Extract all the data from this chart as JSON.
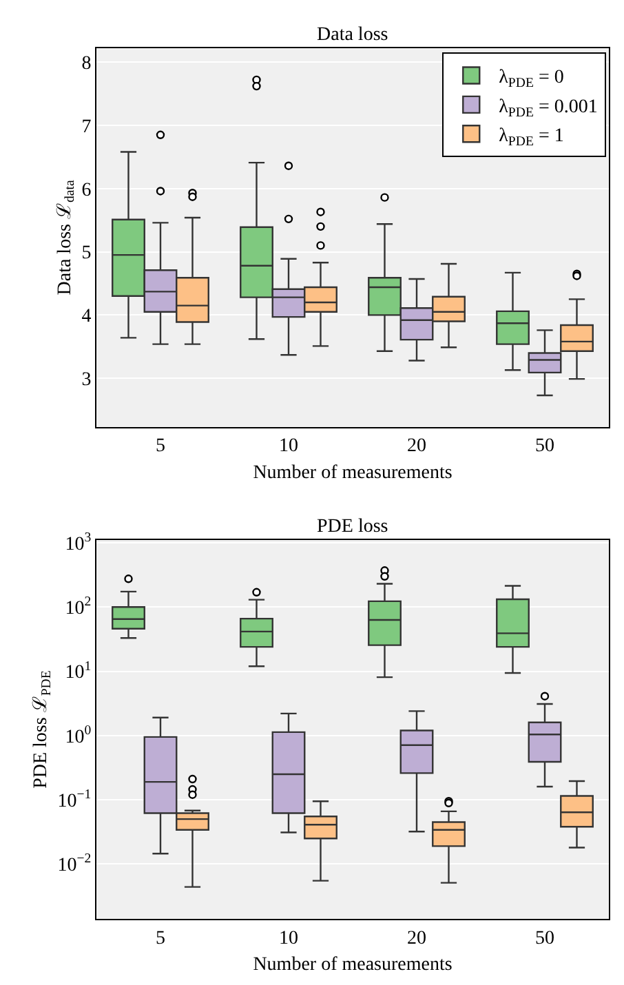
{
  "chart_data": [
    {
      "type": "box",
      "title": "Data loss",
      "xlabel": "Number of measurements",
      "ylabel": "Data loss ℒ$_{data}$",
      "categories": [
        "5",
        "10",
        "20",
        "50"
      ],
      "ylim": [
        2.23,
        8.22
      ],
      "yticks": [
        3,
        4,
        5,
        6,
        7,
        8
      ],
      "grid": "y",
      "legend": "top right",
      "marker": "circle",
      "series": [
        {
          "name": "λ$_{PDE}$ = 0",
          "color": "#7fc97f",
          "boxes": [
            {
              "low": 3.64,
              "q1": 4.3,
              "median": 4.95,
              "q3": 5.51,
              "high": 6.58
            },
            {
              "low": 3.62,
              "q1": 4.28,
              "median": 4.78,
              "q3": 5.39,
              "high": 6.41,
              "outliers": [
                7.72,
                7.62
              ]
            },
            {
              "low": 3.43,
              "q1": 4.0,
              "median": 4.44,
              "q3": 4.59,
              "high": 5.44,
              "outliers": [
                5.86
              ]
            },
            {
              "low": 3.13,
              "q1": 3.54,
              "median": 3.87,
              "q3": 4.06,
              "high": 4.67
            }
          ]
        },
        {
          "name": "λ$_{PDE}$ = 0.001",
          "color": "#beaed4",
          "boxes": [
            {
              "low": 3.54,
              "q1": 4.05,
              "median": 4.37,
              "q3": 4.71,
              "high": 5.46,
              "outliers": [
                6.85,
                5.96
              ]
            },
            {
              "low": 3.37,
              "q1": 3.97,
              "median": 4.28,
              "q3": 4.41,
              "high": 4.89,
              "outliers": [
                6.36,
                5.52
              ]
            },
            {
              "low": 3.28,
              "q1": 3.61,
              "median": 3.92,
              "q3": 4.11,
              "high": 4.57
            },
            {
              "low": 2.73,
              "q1": 3.09,
              "median": 3.29,
              "q3": 3.4,
              "high": 3.76
            }
          ]
        },
        {
          "name": "λ$_{PDE}$ = 1",
          "color": "#fdc086",
          "boxes": [
            {
              "low": 3.54,
              "q1": 3.89,
              "median": 4.15,
              "q3": 4.59,
              "high": 5.54,
              "outliers": [
                5.93,
                5.87
              ]
            },
            {
              "low": 3.51,
              "q1": 4.05,
              "median": 4.2,
              "q3": 4.44,
              "high": 4.83,
              "outliers": [
                5.63,
                5.4,
                5.1
              ]
            },
            {
              "low": 3.49,
              "q1": 3.9,
              "median": 4.05,
              "q3": 4.29,
              "high": 4.81
            },
            {
              "low": 2.99,
              "q1": 3.43,
              "median": 3.58,
              "q3": 3.84,
              "high": 4.25,
              "outliers": [
                4.65,
                4.62
              ]
            }
          ]
        }
      ]
    },
    {
      "type": "box",
      "title": "PDE loss",
      "xlabel": "Number of measurements",
      "ylabel": "PDE loss ℒ$_{PDE}$",
      "categories": [
        "5",
        "10",
        "20",
        "50"
      ],
      "log": "y",
      "ylim": [
        0.0014,
        1100
      ],
      "yticks": [
        {
          "value": 0.01,
          "label": "10$^{−2}$"
        },
        {
          "value": 0.1,
          "label": "10$^{−1}$"
        },
        {
          "value": 1,
          "label": "10$^{0}$"
        },
        {
          "value": 10,
          "label": "10$^{1}$"
        },
        {
          "value": 100,
          "label": "10$^{2}$"
        },
        {
          "value": 1000,
          "label": "10$^{3}$"
        }
      ],
      "grid": "y",
      "marker": "circle",
      "series": [
        {
          "color": "#7fc97f",
          "boxes": [
            {
              "low": 33,
              "q1": 46,
              "median": 65,
              "q3": 100,
              "high": 174,
              "outliers": [
                275
              ]
            },
            {
              "low": 12,
              "q1": 24,
              "median": 41.5,
              "q3": 66,
              "high": 130,
              "outliers": [
                170
              ]
            },
            {
              "low": 8.1,
              "q1": 25.5,
              "median": 63,
              "q3": 123,
              "high": 230,
              "outliers": [
                370,
                300
              ]
            },
            {
              "low": 9.4,
              "q1": 24,
              "median": 39,
              "q3": 132,
              "high": 214
            }
          ]
        },
        {
          "color": "#beaed4",
          "boxes": [
            {
              "low": 0.0145,
              "q1": 0.062,
              "median": 0.19,
              "q3": 0.95,
              "high": 1.9
            },
            {
              "low": 0.031,
              "q1": 0.062,
              "median": 0.25,
              "q3": 1.13,
              "high": 2.2
            },
            {
              "low": 0.032,
              "q1": 0.26,
              "median": 0.71,
              "q3": 1.2,
              "high": 2.4
            },
            {
              "low": 0.16,
              "q1": 0.39,
              "median": 1.04,
              "q3": 1.6,
              "high": 3.1,
              "outliers": [
                4.1
              ]
            }
          ]
        },
        {
          "color": "#fdc086",
          "boxes": [
            {
              "low": 0.0044,
              "q1": 0.034,
              "median": 0.05,
              "q3": 0.062,
              "high": 0.068,
              "outliers": [
                0.21,
                0.145,
                0.12
              ]
            },
            {
              "low": 0.0055,
              "q1": 0.025,
              "median": 0.041,
              "q3": 0.055,
              "high": 0.095
            },
            {
              "low": 0.0051,
              "q1": 0.019,
              "median": 0.034,
              "q3": 0.045,
              "high": 0.066,
              "outliers": [
                0.095,
                0.089
              ]
            },
            {
              "low": 0.018,
              "q1": 0.038,
              "median": 0.064,
              "q3": 0.115,
              "high": 0.195
            }
          ]
        }
      ]
    }
  ]
}
